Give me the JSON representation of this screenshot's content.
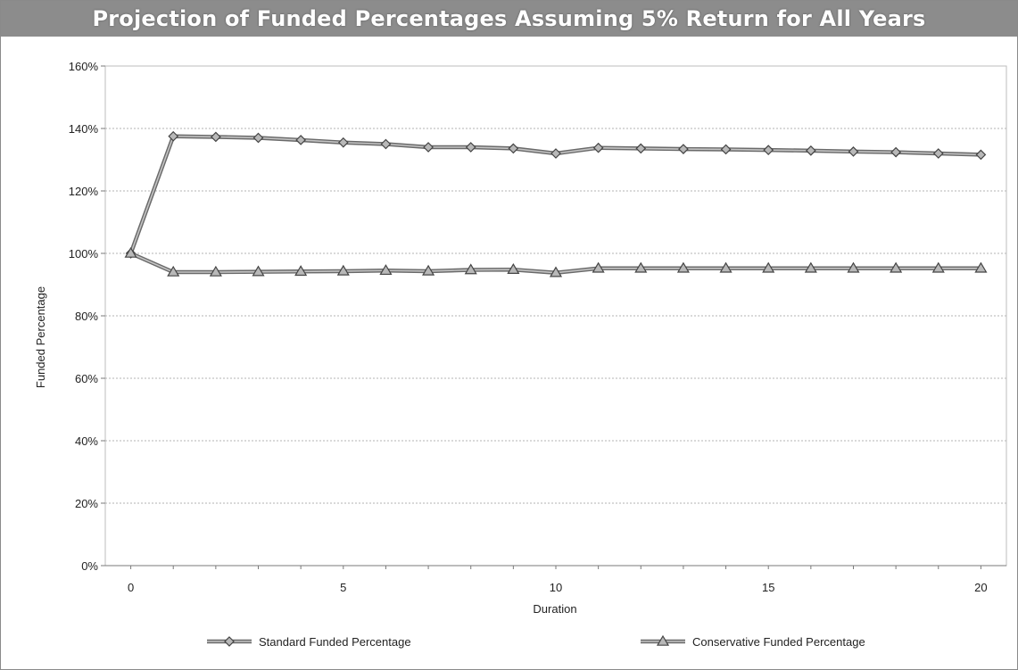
{
  "chart_data": {
    "type": "line",
    "title": "Projection of Funded Percentages Assuming 5% Return for All Years",
    "xlabel": "Duration",
    "ylabel": "Funded Percentage",
    "x": [
      0,
      1,
      2,
      3,
      4,
      5,
      6,
      7,
      8,
      9,
      10,
      11,
      12,
      13,
      14,
      15,
      16,
      17,
      18,
      19,
      20
    ],
    "xticks": [
      0,
      5,
      10,
      15,
      20
    ],
    "xlim": [
      -0.6,
      20.6
    ],
    "ylim": [
      0,
      160
    ],
    "yticks": [
      0,
      20,
      40,
      60,
      80,
      100,
      120,
      140,
      160
    ],
    "ytick_labels": [
      "0%",
      "20%",
      "40%",
      "60%",
      "80%",
      "100%",
      "120%",
      "140%",
      "160%"
    ],
    "grid": true,
    "legend_position": "bottom",
    "series": [
      {
        "name": "Standard Funded Percentage",
        "marker": "diamond",
        "color": "#555555",
        "values": [
          100,
          137.5,
          137.3,
          137.0,
          136.3,
          135.5,
          135.0,
          134.0,
          134.0,
          133.6,
          132.0,
          133.8,
          133.6,
          133.4,
          133.3,
          133.1,
          132.9,
          132.6,
          132.4,
          132.0,
          131.6
        ]
      },
      {
        "name": "Conservative Funded Percentage",
        "marker": "triangle",
        "color": "#555555",
        "values": [
          100,
          94.0,
          94.0,
          94.1,
          94.2,
          94.3,
          94.5,
          94.3,
          94.7,
          94.8,
          93.8,
          95.2,
          95.2,
          95.2,
          95.2,
          95.2,
          95.2,
          95.2,
          95.2,
          95.2,
          95.2
        ]
      }
    ]
  }
}
